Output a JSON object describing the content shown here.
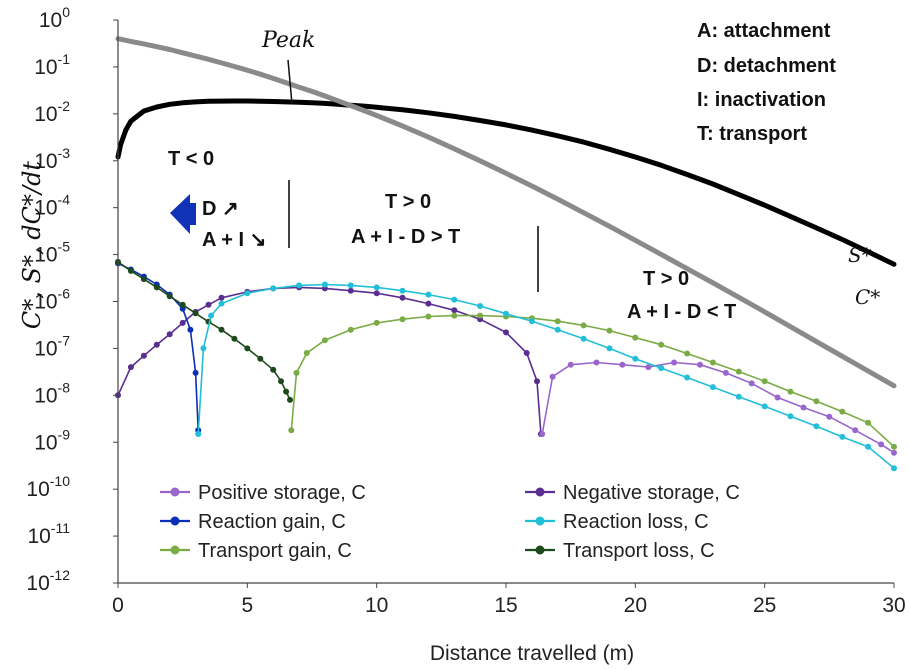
{
  "chart_data": {
    "type": "line",
    "y_scale": "log",
    "xlim": [
      0,
      30
    ],
    "ylim_exponent": [
      -12,
      0
    ],
    "x_ticks": [
      "0",
      "5",
      "10",
      "15",
      "20",
      "25",
      "30"
    ],
    "y_tick_base": "10",
    "y_tick_exponents": [
      "0",
      "-1",
      "-2",
      "-3",
      "-4",
      "-5",
      "-6",
      "-7",
      "-8",
      "-9",
      "-10",
      "-11",
      "-12"
    ],
    "xlabel": "Distance travelled (m)",
    "ylabel": "C*, S*, dC*/dt",
    "grid": false,
    "legend_position": "bottom-center",
    "definitions": [
      "A: attachment",
      "D: detachment",
      "I: inactivation",
      "T: transport"
    ],
    "annotations": {
      "peak": "Peak",
      "region1": "T < 0",
      "region1_d": "D ↗",
      "region1_ai": "A + I ↘",
      "region2": "T > 0",
      "region2_cond": "A + I - D > T",
      "region3": "T > 0",
      "region3_cond": "A + I - D < T"
    },
    "curve_labels": {
      "S": "S*",
      "C": "C*"
    },
    "x": [
      0,
      0.1,
      0.3,
      0.5,
      1,
      1.5,
      2,
      2.5,
      3,
      3.5,
      4,
      4.5,
      5,
      5.5,
      6,
      6.5,
      7,
      7.5,
      8,
      8.5,
      9,
      9.5,
      10,
      11,
      12,
      13,
      14,
      15,
      16,
      17,
      18,
      19,
      20,
      21,
      22,
      23,
      24,
      25,
      26,
      27,
      28,
      29,
      30
    ],
    "series": [
      {
        "name": "S*",
        "color": "#000000",
        "kind": "profile",
        "values": [
          0.0012,
          0.0022,
          0.0045,
          0.007,
          0.0115,
          0.014,
          0.016,
          0.0172,
          0.018,
          0.0185,
          0.0187,
          0.0188,
          0.0188,
          0.0186,
          0.0183,
          0.018,
          0.0177,
          0.0172,
          0.0167,
          0.016,
          0.0153,
          0.0146,
          0.0138,
          0.0122,
          0.0105,
          0.0088,
          0.0072,
          0.0058,
          0.0045,
          0.0034,
          0.0025,
          0.00175,
          0.0012,
          0.0008,
          0.00051,
          0.00032,
          0.00019,
          0.000113,
          6.5e-05,
          3.7e-05,
          2.1e-05,
          1.15e-05,
          6.2e-06
        ]
      },
      {
        "name": "C*",
        "color": "#8a8a8a",
        "kind": "profile",
        "values": [
          0.4,
          0.39,
          0.37,
          0.35,
          0.31,
          0.27,
          0.235,
          0.2,
          0.17,
          0.145,
          0.122,
          0.102,
          0.085,
          0.07,
          0.057,
          0.046,
          0.037,
          0.03,
          0.024,
          0.019,
          0.015,
          0.0118,
          0.0092,
          0.0055,
          0.0032,
          0.0018,
          0.001,
          0.00054,
          0.00029,
          0.000152,
          7.8e-05,
          4e-05,
          2.02e-05,
          1.01e-05,
          5e-06,
          2.5e-06,
          1.23e-06,
          6e-07,
          2.9e-07,
          1.4e-07,
          6.8e-08,
          3.3e-08,
          1.6e-08
        ]
      },
      {
        "name": "Positive storage, C",
        "color": "#9966cc",
        "kind": "rate",
        "x_start": 16.4,
        "x": [
          16.4,
          16.8,
          17.5,
          18.5,
          19.5,
          20.5,
          21.5,
          22.5,
          23.5,
          24.5,
          25.5,
          26.5,
          27.5,
          28.5,
          29.5,
          30
        ],
        "values": [
          1.5e-09,
          2.5e-08,
          4.5e-08,
          5e-08,
          4.5e-08,
          4e-08,
          5e-08,
          4.5e-08,
          3e-08,
          1.8e-08,
          9e-09,
          5.5e-09,
          3.5e-09,
          1.8e-09,
          9e-10,
          6e-10
        ]
      },
      {
        "name": "Negative storage, C",
        "color": "#5a2d91",
        "kind": "rate",
        "x": [
          0,
          0.5,
          1,
          1.5,
          2,
          2.5,
          3,
          3.5,
          4,
          5,
          6,
          7,
          8,
          9,
          10,
          11,
          12,
          13,
          14,
          15,
          15.8,
          16.2,
          16.35
        ],
        "values": [
          1e-08,
          4e-08,
          7e-08,
          1.2e-07,
          2e-07,
          3.5e-07,
          6e-07,
          8.5e-07,
          1.2e-06,
          1.6e-06,
          1.9e-06,
          2e-06,
          1.9e-06,
          1.7e-06,
          1.5e-06,
          1.2e-06,
          9e-07,
          6.5e-07,
          4.2e-07,
          2.2e-07,
          8e-08,
          2e-08,
          1.5e-09
        ]
      },
      {
        "name": "Reaction gain, C",
        "color": "#0b2fb5",
        "kind": "rate",
        "x": [
          0,
          0.5,
          1,
          1.5,
          2,
          2.5,
          2.8,
          3.0,
          3.1
        ],
        "values": [
          6.5e-06,
          4.8e-06,
          3.4e-06,
          2.3e-06,
          1.4e-06,
          7e-07,
          2.5e-07,
          3e-08,
          1.8e-09
        ]
      },
      {
        "name": "Reaction loss, C",
        "color": "#22bfd8",
        "kind": "rate",
        "x": [
          3.1,
          3.3,
          3.6,
          4,
          5,
          6,
          7,
          8,
          9,
          10,
          11,
          12,
          13,
          14,
          15,
          16,
          17,
          18,
          19,
          20,
          21,
          22,
          23,
          24,
          25,
          26,
          27,
          28,
          29,
          30
        ],
        "values": [
          1.5e-09,
          1e-07,
          5e-07,
          9e-07,
          1.5e-06,
          1.9e-06,
          2.2e-06,
          2.3e-06,
          2.2e-06,
          2e-06,
          1.7e-06,
          1.4e-06,
          1.1e-06,
          8e-07,
          5.5e-07,
          3.8e-07,
          2.5e-07,
          1.6e-07,
          1e-07,
          6e-08,
          3.8e-08,
          2.4e-08,
          1.5e-08,
          9.3e-09,
          5.8e-09,
          3.6e-09,
          2.2e-09,
          1.3e-09,
          8e-10,
          2.8e-10
        ]
      },
      {
        "name": "Transport gain, C",
        "color": "#7aab45",
        "kind": "rate",
        "x": [
          6.7,
          6.9,
          7.3,
          8,
          9,
          10,
          11,
          12,
          13,
          14,
          15,
          16,
          17,
          18,
          19,
          20,
          21,
          22,
          23,
          24,
          25,
          26,
          27,
          28,
          29,
          30
        ],
        "values": [
          1.8e-09,
          3e-08,
          8e-08,
          1.5e-07,
          2.5e-07,
          3.5e-07,
          4.2e-07,
          4.8e-07,
          5e-07,
          5e-07,
          4.8e-07,
          4.4e-07,
          3.8e-07,
          3.1e-07,
          2.4e-07,
          1.7e-07,
          1.2e-07,
          7.8e-08,
          5e-08,
          3.2e-08,
          2e-08,
          1.2e-08,
          7.5e-09,
          4.5e-09,
          2.6e-09,
          8e-10
        ]
      },
      {
        "name": "Transport loss, C",
        "color": "#1d4a1d",
        "kind": "rate",
        "x": [
          0,
          0.5,
          1,
          1.5,
          2,
          2.5,
          3,
          3.5,
          4,
          4.5,
          5,
          5.5,
          6,
          6.3,
          6.5,
          6.65
        ],
        "values": [
          7e-06,
          4.5e-06,
          3e-06,
          2e-06,
          1.3e-06,
          8.5e-07,
          5.6e-07,
          3.7e-07,
          2.5e-07,
          1.6e-07,
          1e-07,
          6e-08,
          3.5e-08,
          2e-08,
          1.2e-08,
          8e-09
        ]
      }
    ]
  }
}
